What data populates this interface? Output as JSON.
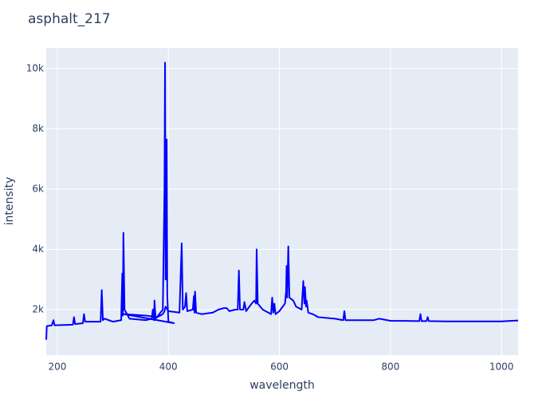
{
  "chart_data": {
    "type": "line",
    "title": "asphalt_217",
    "x_label": "wavelength",
    "y_label": "intensity",
    "color": "#0000ff",
    "grid": true,
    "xlim": [
      180,
      1030
    ],
    "ylim": [
      490,
      10690
    ],
    "xticks": [
      200,
      400,
      600,
      800,
      1000
    ],
    "yticks": [
      {
        "value": 2000,
        "label": "2k"
      },
      {
        "value": 4000,
        "label": "4k"
      },
      {
        "value": 6000,
        "label": "6k"
      },
      {
        "value": 8000,
        "label": "8k"
      },
      {
        "value": 10000,
        "label": "10k"
      }
    ],
    "x": [
      180,
      181,
      190,
      193,
      195,
      228,
      230,
      232,
      246,
      248,
      250,
      278,
      280,
      282,
      285,
      300,
      315,
      317,
      318,
      319,
      321,
      330,
      360,
      370,
      372,
      374,
      375,
      377,
      390,
      393,
      394,
      395,
      396,
      397,
      398,
      400,
      410,
      320,
      360,
      380,
      390,
      393,
      395,
      400,
      420,
      424,
      426,
      430,
      432,
      434,
      444,
      446,
      447,
      448,
      450,
      460,
      480,
      490,
      500,
      505,
      510,
      520,
      525,
      527,
      529,
      535,
      537,
      540,
      550,
      555,
      558,
      559,
      561,
      570,
      585,
      587,
      589,
      591,
      593,
      600,
      610,
      612,
      613,
      614,
      616,
      618,
      625,
      630,
      640,
      643,
      645,
      646,
      648,
      649,
      652,
      660,
      670,
      700,
      715,
      717,
      719,
      740,
      770,
      780,
      800,
      852,
      854,
      856,
      865,
      867,
      869,
      900,
      1000,
      1030
    ],
    "values": [
      1000,
      1450,
      1480,
      1650,
      1480,
      1500,
      1750,
      1520,
      1550,
      1850,
      1600,
      1600,
      2650,
      1650,
      1700,
      1600,
      1650,
      3200,
      1800,
      4550,
      2000,
      1700,
      1650,
      1700,
      2000,
      1650,
      2300,
      1700,
      2000,
      6000,
      10200,
      3000,
      7600,
      7650,
      2500,
      1600,
      1550,
      1850,
      1800,
      1750,
      1850,
      1950,
      2100,
      1950,
      1900,
      4200,
      2000,
      2100,
      2550,
      1950,
      2000,
      2450,
      1900,
      2600,
      1900,
      1850,
      1900,
      2000,
      2050,
      2050,
      1950,
      2000,
      2000,
      3300,
      2000,
      2000,
      2250,
      1950,
      2200,
      2300,
      2200,
      4000,
      2200,
      2000,
      1850,
      2400,
      1900,
      2200,
      1850,
      1950,
      2200,
      2600,
      3450,
      2400,
      4100,
      2400,
      2300,
      2100,
      2000,
      2950,
      2200,
      2750,
      2100,
      2300,
      1900,
      1850,
      1750,
      1700,
      1650,
      1950,
      1650,
      1650,
      1650,
      1700,
      1630,
      1620,
      1850,
      1620,
      1620,
      1750,
      1620,
      1610,
      1610,
      1640
    ]
  }
}
